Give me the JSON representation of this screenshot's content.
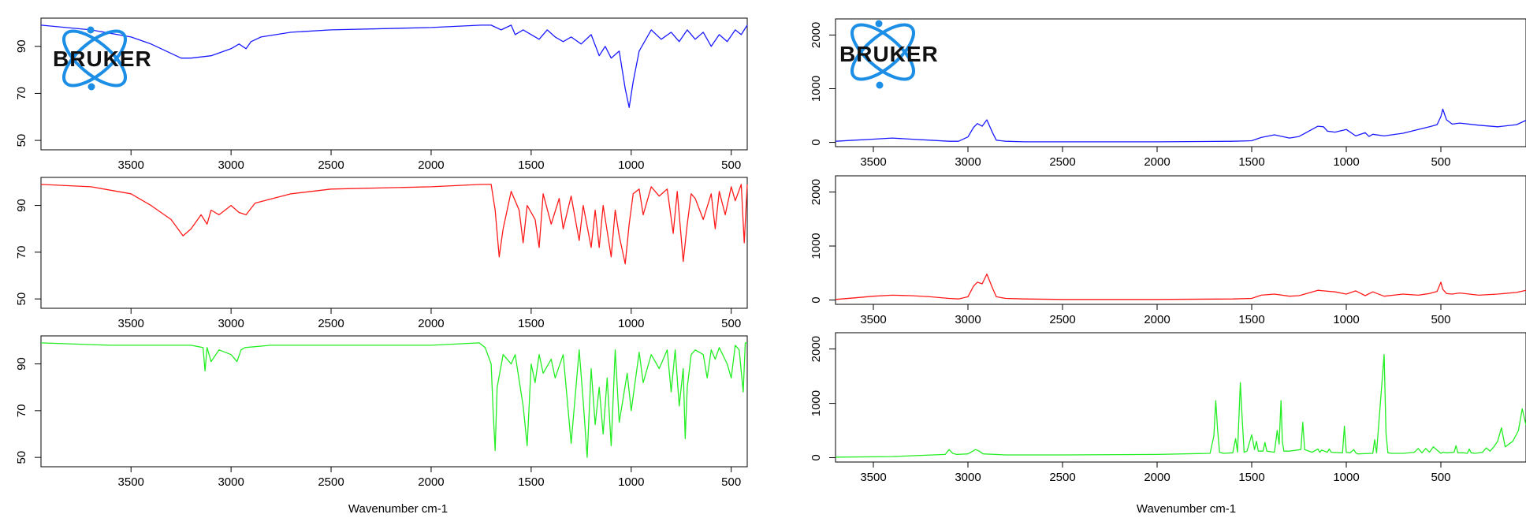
{
  "figure": {
    "logo_text": "BRUKER",
    "left_xlabel": "Wavenumber cm-1",
    "right_xlabel": "Wavenumber cm-1"
  },
  "colors": {
    "blue": "#1a1aff",
    "red": "#ff1a1a",
    "green": "#22ee22",
    "logo_blue": "#1c8ee6"
  },
  "chart_data": [
    {
      "panel": "left-top",
      "type": "line",
      "series_color": "blue",
      "xlabel": "",
      "ylabel": "",
      "xlim": [
        3950,
        420
      ],
      "ylim": [
        46,
        102
      ],
      "xticks": [
        3500,
        3000,
        2500,
        2000,
        1500,
        1000,
        500
      ],
      "yticks": [
        50,
        70,
        90
      ],
      "x": [
        3950,
        3700,
        3500,
        3400,
        3300,
        3250,
        3200,
        3100,
        3000,
        2960,
        2925,
        2900,
        2850,
        2700,
        2500,
        2000,
        1750,
        1700,
        1650,
        1600,
        1580,
        1540,
        1500,
        1460,
        1420,
        1380,
        1340,
        1300,
        1250,
        1200,
        1160,
        1130,
        1100,
        1060,
        1030,
        1010,
        990,
        960,
        900,
        850,
        800,
        760,
        720,
        680,
        640,
        600,
        560,
        520,
        480,
        450,
        420
      ],
      "y": [
        99,
        97,
        94,
        91,
        87,
        85,
        85,
        86,
        89,
        91,
        89,
        92,
        94,
        96,
        97,
        98,
        99,
        99,
        97,
        99,
        95,
        97,
        95,
        93,
        97,
        94,
        92,
        94,
        91,
        95,
        86,
        90,
        85,
        88,
        72,
        64,
        75,
        88,
        97,
        93,
        96,
        92,
        97,
        93,
        96,
        90,
        95,
        92,
        97,
        95,
        99
      ]
    },
    {
      "panel": "left-middle",
      "type": "line",
      "series_color": "red",
      "xlabel": "",
      "ylabel": "",
      "xlim": [
        3950,
        420
      ],
      "ylim": [
        46,
        102
      ],
      "xticks": [
        3500,
        3000,
        2500,
        2000,
        1500,
        1000,
        500
      ],
      "yticks": [
        50,
        70,
        90
      ],
      "x": [
        3950,
        3700,
        3500,
        3400,
        3300,
        3240,
        3200,
        3150,
        3120,
        3100,
        3060,
        3000,
        2960,
        2925,
        2880,
        2700,
        2500,
        2000,
        1750,
        1700,
        1680,
        1660,
        1640,
        1600,
        1560,
        1540,
        1520,
        1480,
        1460,
        1440,
        1400,
        1360,
        1340,
        1300,
        1260,
        1240,
        1200,
        1180,
        1160,
        1140,
        1100,
        1080,
        1060,
        1030,
        1010,
        990,
        960,
        940,
        900,
        860,
        820,
        790,
        770,
        740,
        720,
        700,
        680,
        640,
        600,
        580,
        560,
        530,
        500,
        480,
        450,
        435,
        420
      ],
      "y": [
        99,
        98,
        95,
        90,
        84,
        77,
        80,
        86,
        82,
        88,
        86,
        90,
        87,
        86,
        91,
        95,
        97,
        98,
        99,
        99,
        88,
        68,
        80,
        96,
        88,
        74,
        90,
        84,
        72,
        95,
        82,
        93,
        80,
        94,
        75,
        90,
        72,
        88,
        72,
        90,
        68,
        88,
        77,
        65,
        82,
        95,
        97,
        86,
        98,
        94,
        97,
        78,
        96,
        66,
        82,
        95,
        93,
        84,
        95,
        80,
        96,
        86,
        98,
        92,
        99,
        74,
        99
      ]
    },
    {
      "panel": "left-bottom",
      "type": "line",
      "series_color": "green",
      "xlabel": "Wavenumber cm-1",
      "ylabel": "",
      "xlim": [
        3950,
        420
      ],
      "ylim": [
        46,
        102
      ],
      "xticks": [
        3500,
        3000,
        2500,
        2000,
        1500,
        1000,
        500
      ],
      "yticks": [
        50,
        70,
        90
      ],
      "x": [
        3950,
        3600,
        3400,
        3200,
        3140,
        3130,
        3120,
        3100,
        3060,
        3000,
        2970,
        2950,
        2930,
        2800,
        2500,
        2000,
        1760,
        1730,
        1700,
        1690,
        1680,
        1670,
        1640,
        1600,
        1580,
        1540,
        1520,
        1500,
        1480,
        1460,
        1440,
        1400,
        1380,
        1340,
        1300,
        1260,
        1240,
        1220,
        1200,
        1180,
        1160,
        1140,
        1120,
        1100,
        1080,
        1060,
        1020,
        1000,
        960,
        940,
        900,
        860,
        820,
        800,
        780,
        760,
        740,
        730,
        720,
        700,
        680,
        640,
        620,
        600,
        580,
        560,
        520,
        500,
        480,
        460,
        440,
        430,
        420
      ],
      "y": [
        99,
        98,
        98,
        98,
        97,
        87,
        97,
        91,
        96,
        94,
        91,
        96,
        97,
        98,
        98,
        98,
        99,
        97,
        90,
        70,
        53,
        80,
        94,
        90,
        94,
        72,
        55,
        90,
        82,
        94,
        86,
        92,
        84,
        94,
        56,
        96,
        74,
        50,
        88,
        64,
        80,
        60,
        84,
        55,
        96,
        65,
        86,
        70,
        95,
        82,
        94,
        88,
        96,
        78,
        96,
        72,
        88,
        58,
        80,
        94,
        96,
        94,
        84,
        96,
        92,
        97,
        90,
        84,
        98,
        96,
        78,
        99,
        99
      ]
    },
    {
      "panel": "right-top",
      "type": "line",
      "series_color": "blue",
      "xlabel": "",
      "ylabel": "",
      "xlim": [
        3700,
        50
      ],
      "ylim": [
        -80,
        2300
      ],
      "xticks": [
        3500,
        3000,
        2500,
        2000,
        1500,
        1000,
        500
      ],
      "yticks": [
        0,
        1000,
        2000
      ],
      "x": [
        3700,
        3600,
        3500,
        3400,
        3300,
        3200,
        3100,
        3050,
        3000,
        2970,
        2950,
        2925,
        2900,
        2870,
        2850,
        2800,
        2700,
        2500,
        2000,
        1600,
        1500,
        1450,
        1380,
        1300,
        1250,
        1150,
        1120,
        1100,
        1060,
        1000,
        950,
        900,
        880,
        860,
        800,
        700,
        620,
        560,
        520,
        500,
        490,
        470,
        440,
        400,
        300,
        200,
        100,
        50
      ],
      "y": [
        20,
        40,
        60,
        80,
        60,
        40,
        20,
        20,
        100,
        280,
        350,
        300,
        420,
        180,
        40,
        20,
        10,
        10,
        10,
        20,
        30,
        90,
        140,
        80,
        110,
        300,
        290,
        210,
        190,
        240,
        120,
        180,
        110,
        150,
        120,
        170,
        240,
        290,
        330,
        480,
        620,
        420,
        340,
        360,
        320,
        290,
        330,
        410
      ]
    },
    {
      "panel": "right-middle",
      "type": "line",
      "series_color": "red",
      "xlabel": "",
      "ylabel": "",
      "xlim": [
        3700,
        50
      ],
      "ylim": [
        -80,
        2300
      ],
      "xticks": [
        3500,
        3000,
        2500,
        2000,
        1500,
        1000,
        500
      ],
      "yticks": [
        0,
        1000,
        2000
      ],
      "x": [
        3700,
        3600,
        3500,
        3400,
        3300,
        3200,
        3100,
        3050,
        3000,
        2970,
        2950,
        2925,
        2900,
        2870,
        2850,
        2800,
        2700,
        2500,
        2000,
        1600,
        1500,
        1450,
        1380,
        1300,
        1250,
        1150,
        1120,
        1060,
        1000,
        950,
        900,
        860,
        800,
        700,
        620,
        560,
        520,
        500,
        490,
        470,
        440,
        400,
        300,
        200,
        100,
        50
      ],
      "y": [
        10,
        40,
        70,
        90,
        80,
        60,
        30,
        20,
        60,
        260,
        330,
        300,
        480,
        220,
        60,
        30,
        20,
        10,
        10,
        20,
        30,
        90,
        110,
        70,
        80,
        180,
        170,
        150,
        110,
        170,
        80,
        150,
        70,
        110,
        90,
        120,
        160,
        330,
        200,
        120,
        110,
        130,
        90,
        110,
        140,
        180
      ]
    },
    {
      "panel": "right-bottom",
      "type": "line",
      "series_color": "green",
      "xlabel": "Wavenumber cm-1",
      "ylabel": "",
      "xlim": [
        3700,
        50
      ],
      "ylim": [
        -80,
        2300
      ],
      "xticks": [
        3500,
        3000,
        2500,
        2000,
        1500,
        1000,
        500
      ],
      "yticks": [
        0,
        1000,
        2000
      ],
      "x": [
        3700,
        3400,
        3120,
        3100,
        3080,
        3060,
        3000,
        2960,
        2940,
        2920,
        2800,
        2500,
        2000,
        1720,
        1700,
        1690,
        1680,
        1670,
        1650,
        1600,
        1585,
        1575,
        1560,
        1550,
        1540,
        1525,
        1500,
        1485,
        1475,
        1465,
        1440,
        1430,
        1420,
        1380,
        1365,
        1355,
        1345,
        1338,
        1330,
        1300,
        1240,
        1230,
        1220,
        1180,
        1150,
        1140,
        1130,
        1100,
        1090,
        1080,
        1020,
        1010,
        1000,
        980,
        960,
        950,
        940,
        860,
        850,
        840,
        800,
        790,
        780,
        760,
        700,
        640,
        620,
        600,
        580,
        560,
        540,
        500,
        490,
        470,
        430,
        420,
        410,
        380,
        360,
        350,
        340,
        320,
        280,
        260,
        240,
        220,
        200,
        180,
        160,
        120,
        90,
        70,
        50
      ],
      "y": [
        10,
        20,
        60,
        150,
        80,
        60,
        70,
        150,
        120,
        70,
        50,
        50,
        60,
        80,
        400,
        1050,
        500,
        100,
        80,
        90,
        350,
        100,
        1380,
        700,
        100,
        120,
        420,
        150,
        300,
        120,
        120,
        280,
        120,
        100,
        500,
        250,
        1050,
        300,
        120,
        120,
        150,
        650,
        150,
        100,
        160,
        100,
        140,
        100,
        160,
        100,
        90,
        580,
        100,
        90,
        150,
        90,
        70,
        80,
        330,
        90,
        1900,
        450,
        90,
        80,
        80,
        100,
        170,
        90,
        170,
        100,
        200,
        80,
        100,
        90,
        100,
        220,
        90,
        90,
        80,
        160,
        90,
        80,
        100,
        180,
        120,
        200,
        300,
        550,
        200,
        300,
        500,
        900,
        600
      ]
    }
  ]
}
